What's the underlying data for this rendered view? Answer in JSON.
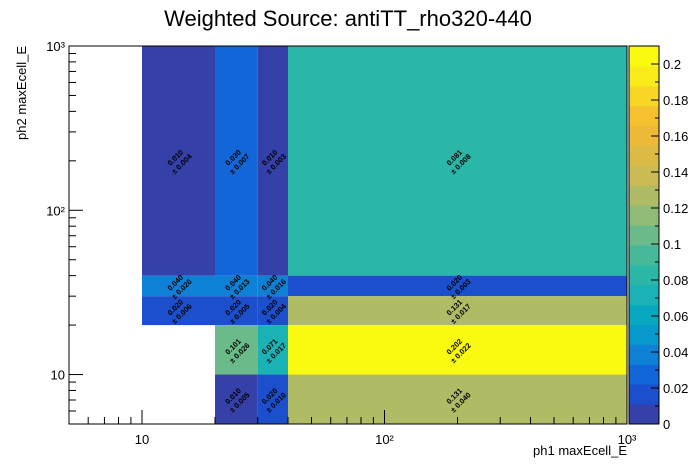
{
  "chart_data": {
    "type": "heatmap",
    "title": "Weighted Source: antiTT_rho320-440",
    "xlabel": "ph1 maxEcell_E",
    "ylabel": "ph2 maxEcell_E",
    "x_scale": "log",
    "y_scale": "log",
    "xlim": [
      5,
      1000
    ],
    "ylim": [
      5,
      1000
    ],
    "zlim": [
      0,
      0.21
    ],
    "x_ticks": [
      {
        "value": 10,
        "label": "10"
      },
      {
        "value": 100,
        "label": "10²"
      },
      {
        "value": 1000,
        "label": "10³"
      }
    ],
    "y_ticks": [
      {
        "value": 10,
        "label": "10"
      },
      {
        "value": 100,
        "label": "10²"
      },
      {
        "value": 1000,
        "label": "10³"
      }
    ],
    "palette_ticks": [
      "0",
      "0.02",
      "0.04",
      "0.06",
      "0.08",
      "0.1",
      "0.12",
      "0.14",
      "0.16",
      "0.18",
      "0.2"
    ],
    "palette_values": [
      0,
      0.02,
      0.04,
      0.06,
      0.08,
      0.1,
      0.12,
      0.14,
      0.16,
      0.18,
      0.2
    ],
    "palette_colors": [
      "#3540a8",
      "#1b4fcc",
      "#1266d8",
      "#0e80d6",
      "#0799cb",
      "#08a8c0",
      "#1ab2b4",
      "#2bb7a8",
      "#46b99a",
      "#6abb89",
      "#8fbb77",
      "#b0bb66",
      "#cabb55",
      "#dcba46",
      "#ecb93a",
      "#f6c12f",
      "#f8d626",
      "#f9ec1a",
      "#f9fa10"
    ],
    "cells": [
      {
        "x0": 10,
        "x1": 20,
        "y0": 40,
        "y1": 1000,
        "value": 0.01,
        "label": "0.010",
        "err": "± 0.004"
      },
      {
        "x0": 20,
        "x1": 30,
        "y0": 40,
        "y1": 1000,
        "value": 0.03,
        "label": "0.030",
        "err": "± 0.007"
      },
      {
        "x0": 30,
        "x1": 40,
        "y0": 40,
        "y1": 1000,
        "value": 0.01,
        "label": "0.010",
        "err": "± 0.003"
      },
      {
        "x0": 40,
        "x1": 1000,
        "y0": 40,
        "y1": 1000,
        "value": 0.081,
        "label": "0.081",
        "err": "± 0.008"
      },
      {
        "x0": 10,
        "x1": 20,
        "y0": 30,
        "y1": 40,
        "value": 0.04,
        "label": "0.040",
        "err": "± 0.020"
      },
      {
        "x0": 20,
        "x1": 30,
        "y0": 30,
        "y1": 40,
        "value": 0.04,
        "label": "0.040",
        "err": "± 0.013"
      },
      {
        "x0": 30,
        "x1": 40,
        "y0": 30,
        "y1": 40,
        "value": 0.04,
        "label": "0.040",
        "err": "± 0.016"
      },
      {
        "x0": 40,
        "x1": 1000,
        "y0": 30,
        "y1": 40,
        "value": 0.02,
        "label": "0.020",
        "err": "± 0.003"
      },
      {
        "x0": 10,
        "x1": 20,
        "y0": 20,
        "y1": 30,
        "value": 0.02,
        "label": "0.020",
        "err": "± 0.006"
      },
      {
        "x0": 20,
        "x1": 30,
        "y0": 20,
        "y1": 30,
        "value": 0.02,
        "label": "0.020",
        "err": "± 0.005"
      },
      {
        "x0": 30,
        "x1": 40,
        "y0": 20,
        "y1": 30,
        "value": 0.02,
        "label": "0.020",
        "err": "± 0.004"
      },
      {
        "x0": 40,
        "x1": 1000,
        "y0": 20,
        "y1": 30,
        "value": 0.131,
        "label": "0.131",
        "err": "± 0.017"
      },
      {
        "x0": 20,
        "x1": 30,
        "y0": 10,
        "y1": 20,
        "value": 0.101,
        "label": "0.101",
        "err": "± 0.026"
      },
      {
        "x0": 30,
        "x1": 40,
        "y0": 10,
        "y1": 20,
        "value": 0.071,
        "label": "0.071",
        "err": "± 0.017"
      },
      {
        "x0": 40,
        "x1": 1000,
        "y0": 10,
        "y1": 20,
        "value": 0.202,
        "label": "0.202",
        "err": "± 0.022"
      },
      {
        "x0": 20,
        "x1": 30,
        "y0": 5,
        "y1": 10,
        "value": 0.01,
        "label": "0.010",
        "err": "± 0.005"
      },
      {
        "x0": 30,
        "x1": 40,
        "y0": 5,
        "y1": 10,
        "value": 0.02,
        "label": "0.020",
        "err": "± 0.010"
      },
      {
        "x0": 40,
        "x1": 1000,
        "y0": 5,
        "y1": 10,
        "value": 0.131,
        "label": "0.131",
        "err": "± 0.040"
      }
    ]
  }
}
